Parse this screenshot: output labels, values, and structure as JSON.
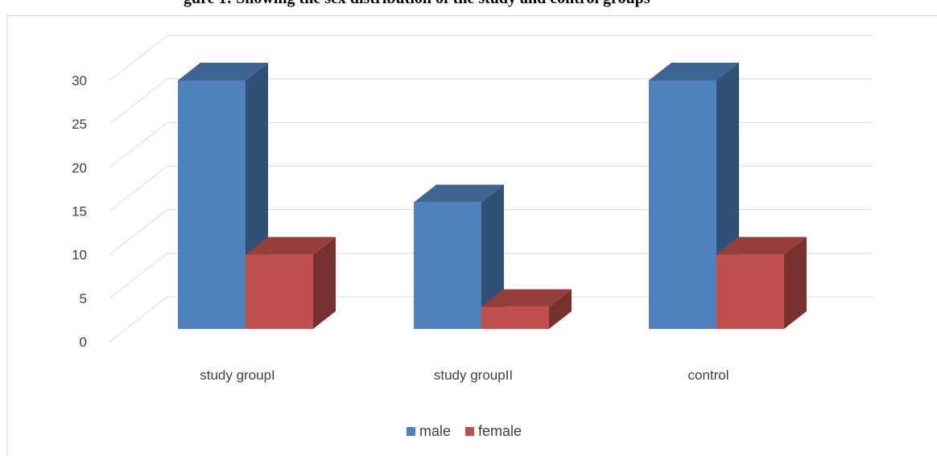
{
  "caption": "gure 1: Showing the sex distribution of the study and control groups",
  "chart_data": {
    "type": "bar",
    "categories": [
      "study groupI",
      "study groupII",
      "control"
    ],
    "series": [
      {
        "name": "male",
        "values": [
          30,
          16,
          30
        ],
        "color": "#4f81bd"
      },
      {
        "name": "female",
        "values": [
          10,
          4,
          10
        ],
        "color": "#c0504d"
      }
    ],
    "ylim": [
      0,
      30
    ],
    "yticks": [
      0,
      5,
      10,
      15,
      20,
      25,
      30
    ],
    "grid": true,
    "legend": "bottom",
    "three_d": true
  }
}
